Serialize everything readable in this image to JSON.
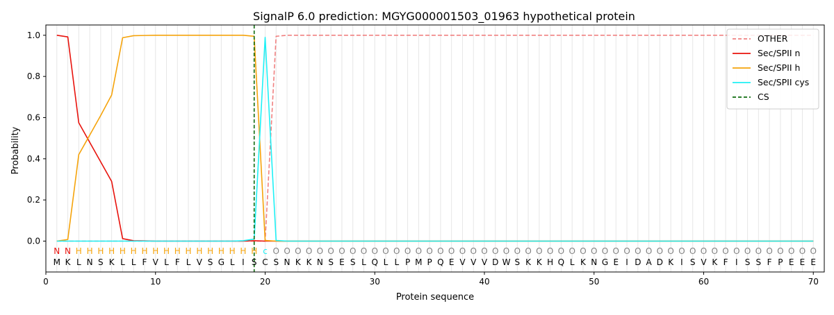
{
  "chart_data": {
    "type": "line",
    "title": "SignalP 6.0 prediction: MGYG000001503_01963 hypothetical protein",
    "xlabel": "Protein sequence",
    "ylabel": "Probability",
    "xlim": [
      0,
      71
    ],
    "ylim": [
      -0.15,
      1.05
    ],
    "xticks": [
      0,
      10,
      20,
      30,
      40,
      50,
      60,
      70
    ],
    "yticks": [
      0.0,
      0.2,
      0.4,
      0.6,
      0.8,
      1.0
    ],
    "ytick_labels": [
      "0.0",
      "0.2",
      "0.4",
      "0.6",
      "0.8",
      "1.0"
    ],
    "grid": "vertical lines at each residue",
    "legend_position": "top-right",
    "x": [
      1,
      2,
      3,
      4,
      5,
      6,
      7,
      8,
      9,
      10,
      11,
      12,
      13,
      14,
      15,
      16,
      17,
      18,
      19,
      20,
      21,
      22,
      23,
      24,
      25,
      26,
      27,
      28,
      29,
      30,
      31,
      32,
      33,
      34,
      35,
      36,
      37,
      38,
      39,
      40,
      41,
      42,
      43,
      44,
      45,
      46,
      47,
      48,
      49,
      50,
      51,
      52,
      53,
      54,
      55,
      56,
      57,
      58,
      59,
      60,
      61,
      62,
      63,
      64,
      65,
      66,
      67,
      68,
      69,
      70
    ],
    "series": [
      {
        "name": "OTHER",
        "color": "#f08080",
        "dash": "dashed",
        "values": [
          0,
          0,
          0,
          0,
          0,
          0,
          0,
          0,
          0,
          0,
          0,
          0,
          0,
          0,
          0,
          0,
          0,
          0,
          0,
          0,
          0.995,
          1,
          1,
          1,
          1,
          1,
          1,
          1,
          1,
          1,
          1,
          1,
          1,
          1,
          1,
          1,
          1,
          1,
          1,
          1,
          1,
          1,
          1,
          1,
          1,
          1,
          1,
          1,
          1,
          1,
          1,
          1,
          1,
          1,
          1,
          1,
          1,
          1,
          1,
          1,
          1,
          1,
          1,
          1,
          1,
          1,
          1,
          1,
          1,
          1
        ]
      },
      {
        "name": "Sec/SPII n",
        "color": "#e8120c",
        "dash": "solid",
        "values": [
          1.0,
          0.992,
          0.575,
          0.48,
          0.385,
          0.29,
          0.012,
          0.002,
          0.001,
          0,
          0,
          0,
          0,
          0,
          0,
          0,
          0,
          0,
          0.002,
          0,
          0,
          0,
          0,
          0,
          0,
          0,
          0,
          0,
          0,
          0,
          0,
          0,
          0,
          0,
          0,
          0,
          0,
          0,
          0,
          0,
          0,
          0,
          0,
          0,
          0,
          0,
          0,
          0,
          0,
          0,
          0,
          0,
          0,
          0,
          0,
          0,
          0,
          0,
          0,
          0,
          0,
          0,
          0,
          0,
          0,
          0,
          0,
          0,
          0,
          0
        ]
      },
      {
        "name": "Sec/SPII h",
        "color": "#f5a30a",
        "dash": "solid",
        "values": [
          0,
          0.008,
          0.42,
          0.515,
          0.61,
          0.71,
          0.988,
          0.998,
          0.999,
          1,
          1,
          1,
          1,
          1,
          1,
          1,
          1,
          1,
          0.995,
          0.003,
          0,
          0,
          0,
          0,
          0,
          0,
          0,
          0,
          0,
          0,
          0,
          0,
          0,
          0,
          0,
          0,
          0,
          0,
          0,
          0,
          0,
          0,
          0,
          0,
          0,
          0,
          0,
          0,
          0,
          0,
          0,
          0,
          0,
          0,
          0,
          0,
          0,
          0,
          0,
          0,
          0,
          0,
          0,
          0,
          0,
          0,
          0,
          0,
          0,
          0
        ]
      },
      {
        "name": "Sec/SPII cys",
        "color": "#1ef0f5",
        "dash": "solid",
        "values": [
          0,
          0,
          0,
          0,
          0,
          0,
          0,
          0,
          0,
          0,
          0,
          0,
          0,
          0,
          0,
          0,
          0,
          0.002,
          0.01,
          0.99,
          0.003,
          0,
          0,
          0,
          0,
          0,
          0,
          0,
          0,
          0,
          0,
          0,
          0,
          0,
          0,
          0,
          0,
          0,
          0,
          0,
          0,
          0,
          0,
          0,
          0,
          0,
          0,
          0,
          0,
          0,
          0,
          0,
          0,
          0,
          0,
          0,
          0,
          0,
          0,
          0,
          0,
          0,
          0,
          0,
          0,
          0,
          0,
          0,
          0,
          0
        ]
      },
      {
        "name": "CS",
        "color": "#0d6b0d",
        "dash": "dashed",
        "vline_x": 19
      }
    ],
    "sequence": [
      "M",
      "K",
      "L",
      "N",
      "S",
      "K",
      "L",
      "L",
      "F",
      "V",
      "L",
      "F",
      "L",
      "V",
      "S",
      "G",
      "L",
      "I",
      "S",
      "C",
      "S",
      "N",
      "K",
      "K",
      "N",
      "S",
      "E",
      "S",
      "L",
      "Q",
      "L",
      "L",
      "P",
      "M",
      "P",
      "Q",
      "E",
      "V",
      "V",
      "V",
      "D",
      "W",
      "S",
      "K",
      "K",
      "H",
      "Q",
      "L",
      "K",
      "N",
      "G",
      "E",
      "I",
      "D",
      "A",
      "D",
      "K",
      "I",
      "S",
      "V",
      "K",
      "F",
      "I",
      "S",
      "S",
      "F",
      "P",
      "E",
      "E",
      "E"
    ],
    "labels": [
      "N",
      "N",
      "H",
      "H",
      "H",
      "H",
      "H",
      "H",
      "H",
      "H",
      "H",
      "H",
      "H",
      "H",
      "H",
      "H",
      "H",
      "H",
      "H",
      "c",
      "O",
      "O",
      "O",
      "O",
      "O",
      "O",
      "O",
      "O",
      "O",
      "O",
      "O",
      "O",
      "O",
      "O",
      "O",
      "O",
      "O",
      "O",
      "O",
      "O",
      "O",
      "O",
      "O",
      "O",
      "O",
      "O",
      "O",
      "O",
      "O",
      "O",
      "O",
      "O",
      "O",
      "O",
      "O",
      "O",
      "O",
      "O",
      "O",
      "O",
      "O",
      "O",
      "O",
      "O",
      "O",
      "O",
      "O",
      "O",
      "O",
      "O"
    ],
    "label_colors": {
      "N": "#e8120c",
      "H": "#f5a30a",
      "c": "#1ef0f5",
      "O": "#808080"
    }
  }
}
